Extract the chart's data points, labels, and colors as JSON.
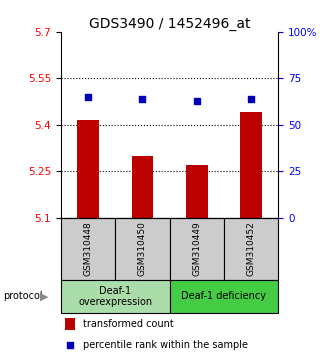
{
  "title": "GDS3490 / 1452496_at",
  "samples": [
    "GSM310448",
    "GSM310450",
    "GSM310449",
    "GSM310452"
  ],
  "bar_values": [
    5.415,
    5.3,
    5.27,
    5.44
  ],
  "percentile_values": [
    65,
    64,
    63,
    64
  ],
  "ylim_left": [
    5.1,
    5.7
  ],
  "ylim_right": [
    0,
    100
  ],
  "yticks_left": [
    5.1,
    5.25,
    5.4,
    5.55,
    5.7
  ],
  "ytick_labels_left": [
    "5.1",
    "5.25",
    "5.4",
    "5.55",
    "5.7"
  ],
  "yticks_right": [
    0,
    25,
    50,
    75,
    100
  ],
  "ytick_labels_right": [
    "0",
    "25",
    "50",
    "75",
    "100%"
  ],
  "hlines": [
    5.25,
    5.4,
    5.55
  ],
  "bar_color": "#bb0000",
  "dot_color": "#0000bb",
  "bar_width": 0.4,
  "groups": [
    {
      "label": "Deaf-1\noverexpression",
      "samples_idx": [
        0,
        1
      ],
      "color": "#aaddaa"
    },
    {
      "label": "Deaf-1 deficiency",
      "samples_idx": [
        2,
        3
      ],
      "color": "#44cc44"
    }
  ],
  "protocol_label": "protocol",
  "sample_bg_color": "#cccccc",
  "legend_bar_label": "transformed count",
  "legend_dot_label": "percentile rank within the sample",
  "title_fontsize": 10,
  "tick_fontsize": 7.5,
  "sample_fontsize": 6.5,
  "group_fontsize": 7,
  "legend_fontsize": 7
}
